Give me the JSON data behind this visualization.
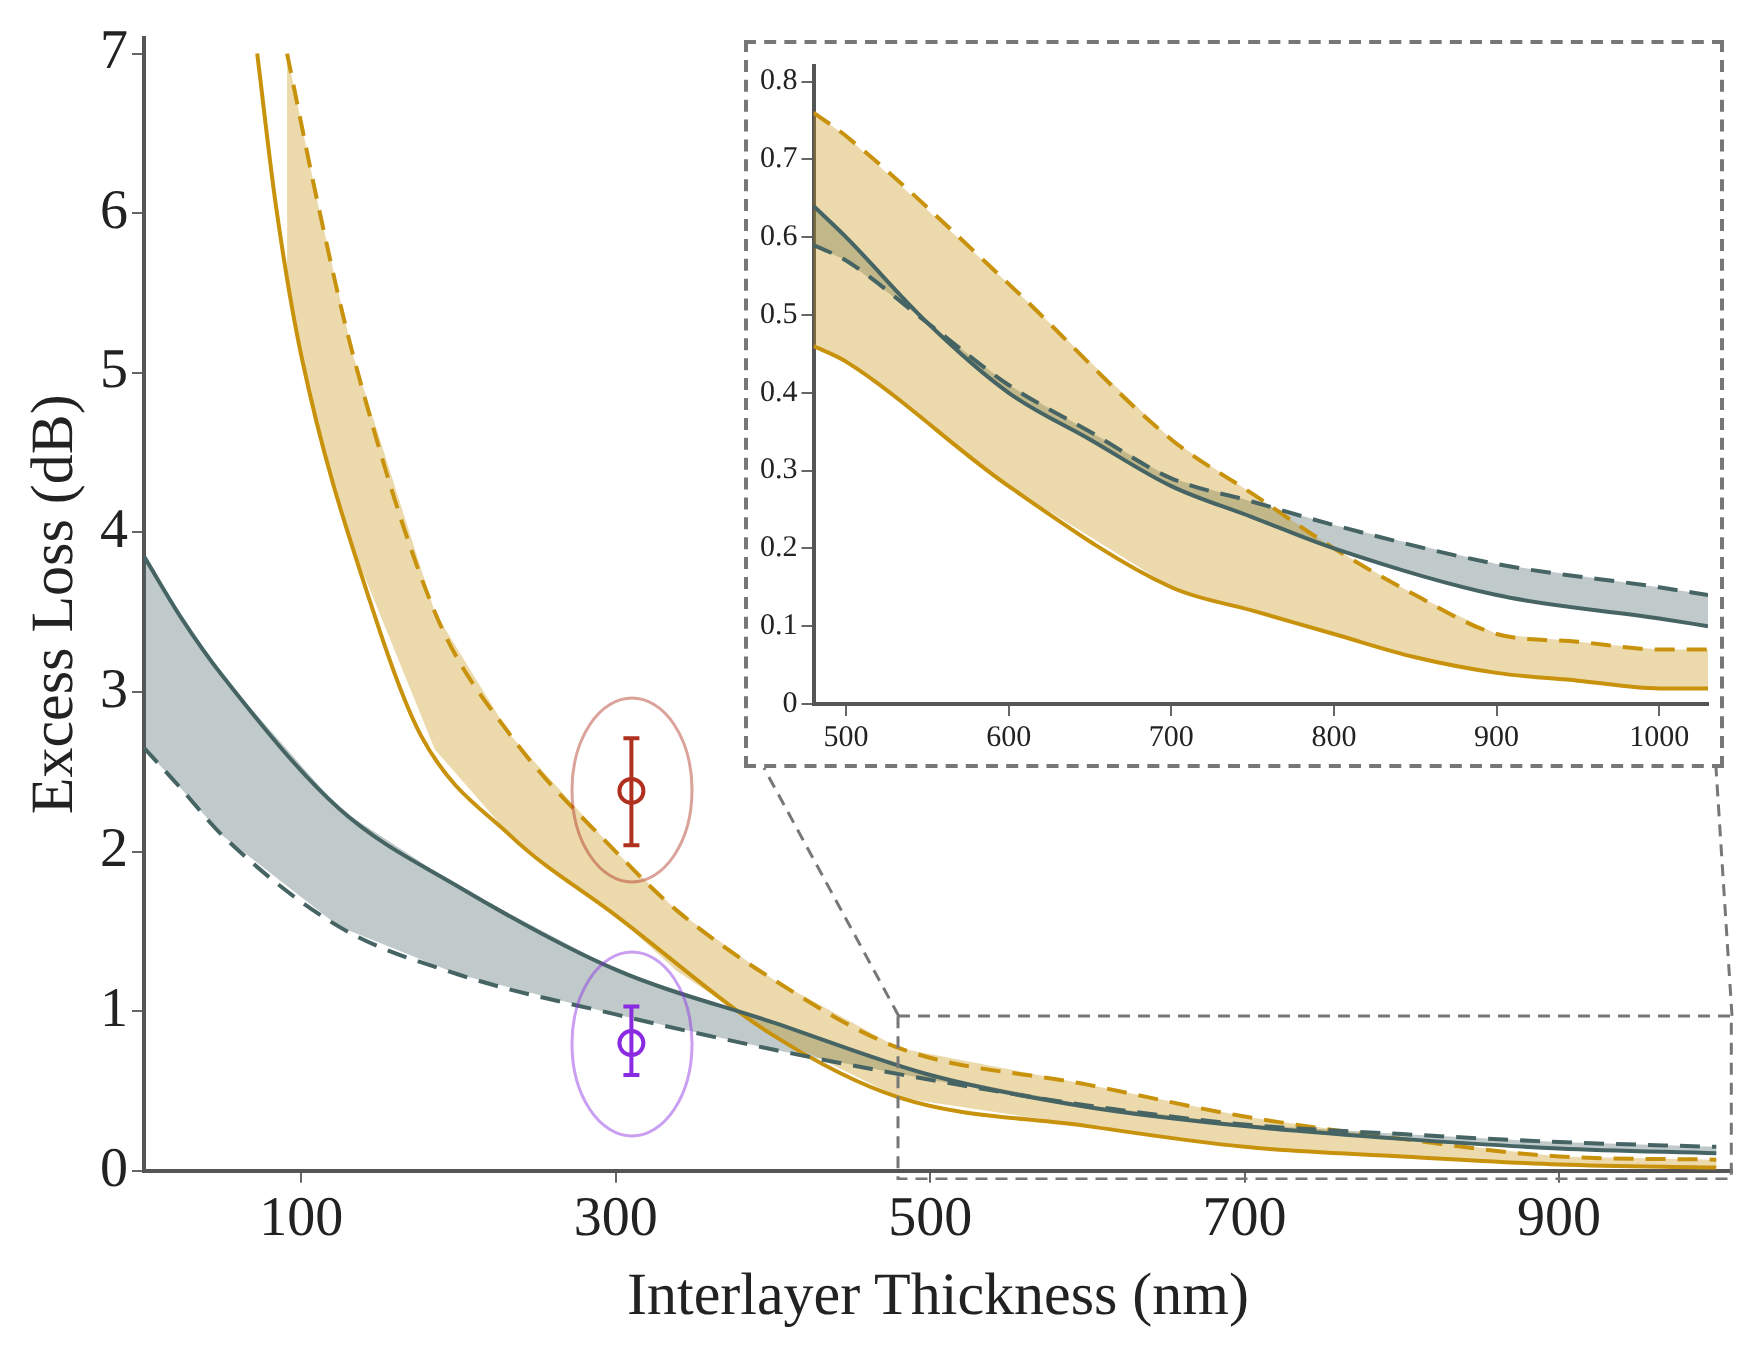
{
  "chart_data": [
    {
      "type": "line",
      "xlabel": "Interlayer Thickness (nm)",
      "ylabel": "Excess Loss (dB)",
      "xlim": [
        0,
        1010
      ],
      "ylim": [
        0,
        7.1
      ],
      "xticks": [
        100,
        300,
        500,
        700,
        900
      ],
      "yticks": [
        0,
        1,
        2,
        3,
        4,
        5,
        6,
        7
      ],
      "grid": false,
      "legend": false,
      "series": [
        {
          "type": "line",
          "color": "#466464",
          "line_style": "solid",
          "x": [
            0,
            24,
            50,
            124,
            200,
            300,
            400,
            500,
            600,
            700,
            800,
            900,
            1000
          ],
          "values": [
            3.85,
            3.46,
            3.1,
            2.27,
            1.78,
            1.26,
            0.93,
            0.6,
            0.4,
            0.28,
            0.2,
            0.14,
            0.11
          ],
          "lower": [
            2.65,
            2.39,
            2.1,
            1.53,
            1.23,
            0.98,
            0.76,
            0.57,
            0.4,
            0.28,
            0.2,
            0.14,
            0.11
          ],
          "upper": [
            3.85,
            3.46,
            3.1,
            2.27,
            1.78,
            1.26,
            0.93,
            0.6,
            0.41,
            0.29,
            0.23,
            0.18,
            0.15
          ]
        },
        {
          "type": "line",
          "color": "#466464",
          "line_style": "dashed",
          "x": [
            0,
            24,
            50,
            124,
            200,
            300,
            400,
            500,
            600,
            700,
            800,
            900,
            1000
          ],
          "values": [
            2.65,
            2.39,
            2.1,
            1.53,
            1.23,
            0.98,
            0.76,
            0.57,
            0.41,
            0.29,
            0.23,
            0.18,
            0.15
          ]
        },
        {
          "type": "line",
          "color": "#c8920c",
          "line_style": "solid",
          "x": [
            72,
            84,
            100,
            146,
            176,
            233,
            300,
            400,
            480,
            600,
            700,
            800,
            900,
            1000
          ],
          "values": [
            7.0,
            6.04,
            5.11,
            3.5,
            2.73,
            2.1,
            1.6,
            0.85,
            0.46,
            0.28,
            0.15,
            0.09,
            0.04,
            0.02
          ]
        },
        {
          "type": "line",
          "color": "#c8920c",
          "line_style": "dashed",
          "x": [
            91,
            111,
            133,
            185,
            233,
            300,
            339,
            400,
            480,
            600,
            700,
            800,
            900,
            1000
          ],
          "values": [
            7.0,
            6.04,
            5.11,
            3.5,
            2.73,
            2.0,
            1.63,
            1.2,
            0.77,
            0.54,
            0.34,
            0.2,
            0.09,
            0.07
          ],
          "lower": [
            5.55,
            4.6,
            3.9,
            2.64,
            2.1,
            1.6,
            1.25,
            0.85,
            0.46,
            0.28,
            0.15,
            0.09,
            0.04,
            0.02
          ],
          "upper": [
            7.0,
            6.04,
            5.11,
            3.5,
            2.73,
            2.0,
            1.63,
            1.2,
            0.77,
            0.54,
            0.34,
            0.2,
            0.09,
            0.07
          ]
        },
        {
          "type": "scatter",
          "color": "#b03020",
          "marker": "circle",
          "x": [
            310
          ],
          "values": [
            2.38
          ],
          "errors": [
            [
              2.04,
              2.71
            ]
          ]
        },
        {
          "type": "scatter",
          "color": "#8a2be2",
          "marker": "circle",
          "x": [
            310
          ],
          "values": [
            0.8
          ],
          "errors": [
            [
              0.6,
              1.03
            ]
          ]
        }
      ]
    },
    {
      "type": "line",
      "xlim": [
        480,
        1030
      ],
      "ylim": [
        0,
        0.82
      ],
      "xticks": [
        500,
        600,
        700,
        800,
        900,
        1000
      ],
      "yticks": [
        0,
        0.1,
        0.2,
        0.3,
        0.4,
        0.5,
        0.6,
        0.7,
        0.8
      ],
      "grid": false,
      "legend": false,
      "series": [
        {
          "type": "line",
          "color": "#466464",
          "line_style": "solid",
          "x": [
            480,
            500,
            550,
            600,
            650,
            700,
            750,
            800,
            900,
            1000,
            1030
          ],
          "values": [
            0.64,
            0.6,
            0.49,
            0.4,
            0.34,
            0.28,
            0.24,
            0.2,
            0.14,
            0.11,
            0.1
          ],
          "lower": [
            0.59,
            0.57,
            0.49,
            0.4,
            0.34,
            0.28,
            0.24,
            0.2,
            0.14,
            0.11,
            0.1
          ],
          "upper": [
            0.64,
            0.6,
            0.49,
            0.41,
            0.35,
            0.29,
            0.26,
            0.23,
            0.18,
            0.15,
            0.14
          ]
        },
        {
          "type": "line",
          "color": "#466464",
          "line_style": "dashed",
          "x": [
            480,
            500,
            550,
            600,
            650,
            700,
            750,
            800,
            900,
            1000,
            1030
          ],
          "values": [
            0.59,
            0.57,
            0.49,
            0.41,
            0.35,
            0.29,
            0.26,
            0.23,
            0.18,
            0.15,
            0.14
          ]
        },
        {
          "type": "line",
          "color": "#c8920c",
          "line_style": "solid",
          "x": [
            480,
            500,
            600,
            700,
            750,
            800,
            850,
            900,
            950,
            1000,
            1030
          ],
          "values": [
            0.46,
            0.44,
            0.28,
            0.15,
            0.12,
            0.09,
            0.06,
            0.04,
            0.03,
            0.02,
            0.02
          ]
        },
        {
          "type": "line",
          "color": "#c8920c",
          "line_style": "dashed",
          "x": [
            480,
            500,
            600,
            700,
            750,
            800,
            850,
            900,
            950,
            1000,
            1030
          ],
          "values": [
            0.76,
            0.73,
            0.54,
            0.34,
            0.27,
            0.2,
            0.14,
            0.09,
            0.08,
            0.07,
            0.07
          ],
          "lower": [
            0.46,
            0.44,
            0.28,
            0.15,
            0.12,
            0.09,
            0.06,
            0.04,
            0.03,
            0.02,
            0.02
          ],
          "upper": [
            0.76,
            0.73,
            0.54,
            0.34,
            0.27,
            0.2,
            0.14,
            0.09,
            0.08,
            0.07,
            0.07
          ]
        }
      ]
    }
  ]
}
